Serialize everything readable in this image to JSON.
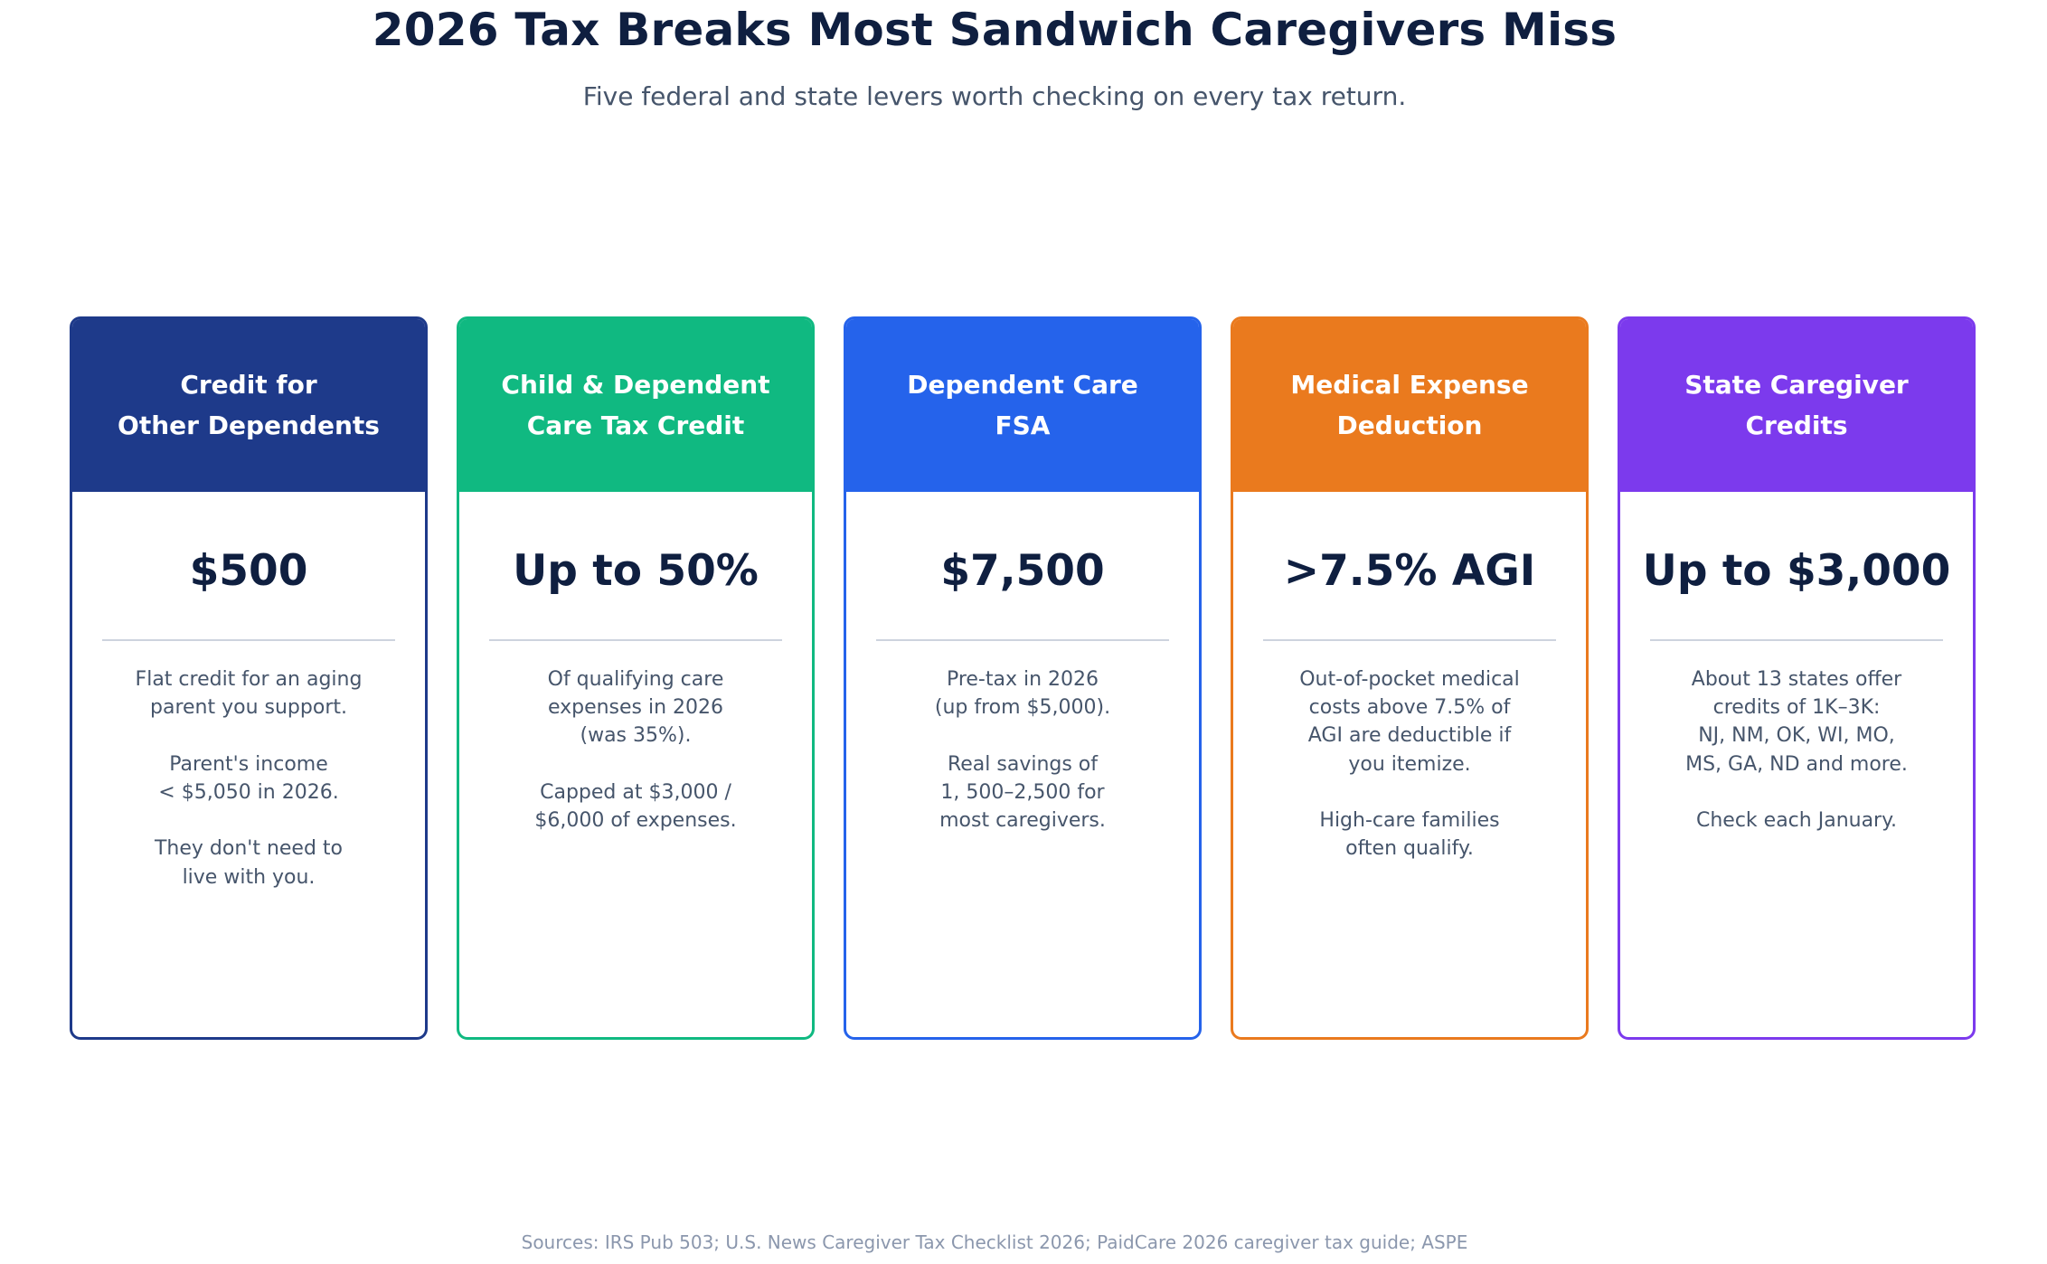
{
  "title": "2026 Tax Breaks Most Sandwich Caregivers Miss",
  "subtitle": "Five federal and state levers worth checking on every tax return.",
  "cards": [
    {
      "header": "Credit for\nOther Dependents",
      "value": "$500",
      "description": "Flat credit for an aging\nparent you support.\n\nParent's income\n< $5,050 in 2026.\n\nThey don't need to\nlive with you.",
      "color": "#1e3a8a"
    },
    {
      "header": "Child & Dependent\nCare Tax Credit",
      "value": "Up to 50%",
      "description": "Of qualifying care\nexpenses in 2026\n(was 35%).\n\nCapped at $3,000 /\n$6,000 of expenses.",
      "color": "#10b981"
    },
    {
      "header": "Dependent Care\nFSA",
      "value": "$7,500",
      "description": "Pre-tax in 2026\n(up from $5,000).\n\nReal savings of\n1, 500–2,500 for\nmost caregivers.",
      "color": "#2563eb"
    },
    {
      "header": "Medical Expense\nDeduction",
      "value": ">7.5% AGI",
      "description": "Out-of-pocket medical\ncosts above 7.5% of\nAGI are deductible if\nyou itemize.\n\nHigh-care families\noften qualify.",
      "color": "#ea7a1e"
    },
    {
      "header": "State Caregiver\nCredits",
      "value": "Up to $3,000",
      "description": "About 13 states offer\ncredits of 1K–3K:\nNJ, NM, OK, WI, MO,\nMS, GA, ND and more.\n\nCheck each January.",
      "color": "#7c3aed"
    }
  ],
  "footer": "Sources: IRS Pub 503; U.S. News Caregiver Tax Checklist 2026; PaidCare 2026 caregiver tax guide; ASPE"
}
